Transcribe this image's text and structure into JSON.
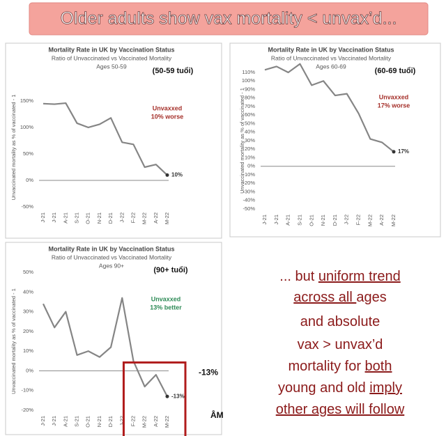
{
  "banner": {
    "title": "Older adults show vax mortality < unvax’d..."
  },
  "chart_data": [
    {
      "type": "line",
      "title": "Mortality Rate in UK by Vaccination Status",
      "subtitle": "Ratio of Unvaccinated vs Vaccinated Mortality",
      "ages": "Ages 50-59",
      "note": "(50-59 tuổi)",
      "ylabel": "Unvaccinated mortality as % of vaccinated - 1",
      "annotation": [
        "Unvaxxed",
        "10% worse"
      ],
      "annotation_color": "#a5302a",
      "categories": [
        "J-21",
        "J-21",
        "A-21",
        "S-21",
        "O-21",
        "N-21",
        "D-21",
        "J-22",
        "F-22",
        "M-22",
        "A-22",
        "M-22"
      ],
      "values": [
        145,
        144,
        146,
        108,
        100,
        106,
        118,
        72,
        68,
        25,
        30,
        10
      ],
      "value_labels": [
        null,
        null,
        null,
        null,
        null,
        null,
        null,
        null,
        null,
        null,
        null,
        "10%"
      ],
      "color": "#858585",
      "ylim": [
        -50,
        175
      ],
      "yticks": [
        {
          "value": -50,
          "label": "-50%"
        },
        {
          "value": 0,
          "label": "0%"
        },
        {
          "value": 50,
          "label": "50%"
        },
        {
          "value": 100,
          "label": "100%"
        },
        {
          "value": 150,
          "label": "150%"
        }
      ]
    },
    {
      "type": "line",
      "title": "Mortality Rate in UK by Vaccination Status",
      "subtitle": "Ratio of Unvaccinated vs Vaccinated Mortality",
      "ages": "Ages 60-69",
      "note": "(60-69 tuổi)",
      "ylabel": "Unvaccinated mortality as % of vaccinated - 1",
      "annotation": [
        "Unvaxxed",
        "17% worse"
      ],
      "annotation_color": "#a5302a",
      "categories": [
        "J-21",
        "J-21",
        "A-21",
        "S-21",
        "O-21",
        "N-21",
        "D-21",
        "J-22",
        "F-22",
        "M-22",
        "A-22",
        "M-22"
      ],
      "values": [
        113,
        117,
        110,
        120,
        95,
        100,
        83,
        85,
        62,
        32,
        28,
        17
      ],
      "value_labels": [
        null,
        null,
        null,
        null,
        null,
        null,
        null,
        null,
        null,
        null,
        null,
        "17%"
      ],
      "color": "#858585",
      "ylim": [
        -50,
        110
      ],
      "yticks": [
        {
          "value": -50,
          "label": "-50%"
        },
        {
          "value": -40,
          "label": "-40%"
        },
        {
          "value": -30,
          "label": "-30%"
        },
        {
          "value": -20,
          "label": "-20%"
        },
        {
          "value": -10,
          "label": "-10%"
        },
        {
          "value": 0,
          "label": "0%"
        },
        {
          "value": 10,
          "label": "10%"
        },
        {
          "value": 20,
          "label": "20%"
        },
        {
          "value": 30,
          "label": "30%"
        },
        {
          "value": 40,
          "label": "40%"
        },
        {
          "value": 50,
          "label": "50%"
        },
        {
          "value": 60,
          "label": "60%"
        },
        {
          "value": 70,
          "label": "70%"
        },
        {
          "value": 80,
          "label": "80%"
        },
        {
          "value": 90,
          "label": "90%"
        },
        {
          "value": 100,
          "label": "100%"
        },
        {
          "value": 110,
          "label": "110%"
        }
      ]
    },
    {
      "type": "line",
      "title": "Mortality Rate in UK by Vaccination Status",
      "subtitle": "Ratio of Unvaccinated vs Vaccinated Mortality",
      "ages": "Ages 90+",
      "note": "(90+ tuổi)",
      "ylabel": "Unvaccinated mortality as % of vaccinated - 1",
      "annotation": [
        "Unvaxxed",
        "13% better"
      ],
      "annotation_color": "#2e8b57",
      "categories": [
        "J-21",
        "J-21",
        "A-21",
        "S-21",
        "O-21",
        "N-21",
        "D-21",
        "J-22",
        "F-22",
        "M-22",
        "A-22",
        "M-22"
      ],
      "values": [
        34,
        22,
        30,
        8,
        10,
        7,
        12,
        37,
        5,
        -8,
        -2,
        -13
      ],
      "value_labels": [
        null,
        null,
        null,
        null,
        null,
        null,
        null,
        null,
        null,
        null,
        null,
        "-13%"
      ],
      "color": "#858585",
      "ylim": [
        -20,
        50
      ],
      "yticks": [
        {
          "value": -20,
          "label": "-20%"
        },
        {
          "value": -10,
          "label": "-10%"
        },
        {
          "value": 0,
          "label": "0%"
        },
        {
          "value": 10,
          "label": "10%"
        },
        {
          "value": 20,
          "label": "20%"
        },
        {
          "value": 30,
          "label": "30%"
        },
        {
          "value": 40,
          "label": "40%"
        },
        {
          "value": 50,
          "label": "50%"
        }
      ],
      "extra_labels": [
        "-13%",
        "ÂM"
      ],
      "highlight_color": "#b01c1c"
    }
  ],
  "text_block": {
    "color": "#8b1a1a",
    "lines": [
      [
        {
          "text": "... but ",
          "underline": false
        },
        {
          "text": "uniform trend",
          "underline": true
        }
      ],
      [
        {
          "text": "across all ",
          "underline": true
        },
        {
          "text": "ages",
          "underline": false
        }
      ],
      [
        {
          "text": "and absolute",
          "underline": false
        }
      ],
      [
        {
          "text": "vax > unvax’d",
          "underline": false
        }
      ],
      [
        {
          "text": "mortality for ",
          "underline": false
        },
        {
          "text": "both",
          "underline": true
        }
      ],
      [
        {
          "text": "young and old ",
          "underline": false
        },
        {
          "text": "imply",
          "underline": true
        }
      ],
      [
        {
          "text": "other ages will follow",
          "underline": true
        }
      ]
    ]
  }
}
